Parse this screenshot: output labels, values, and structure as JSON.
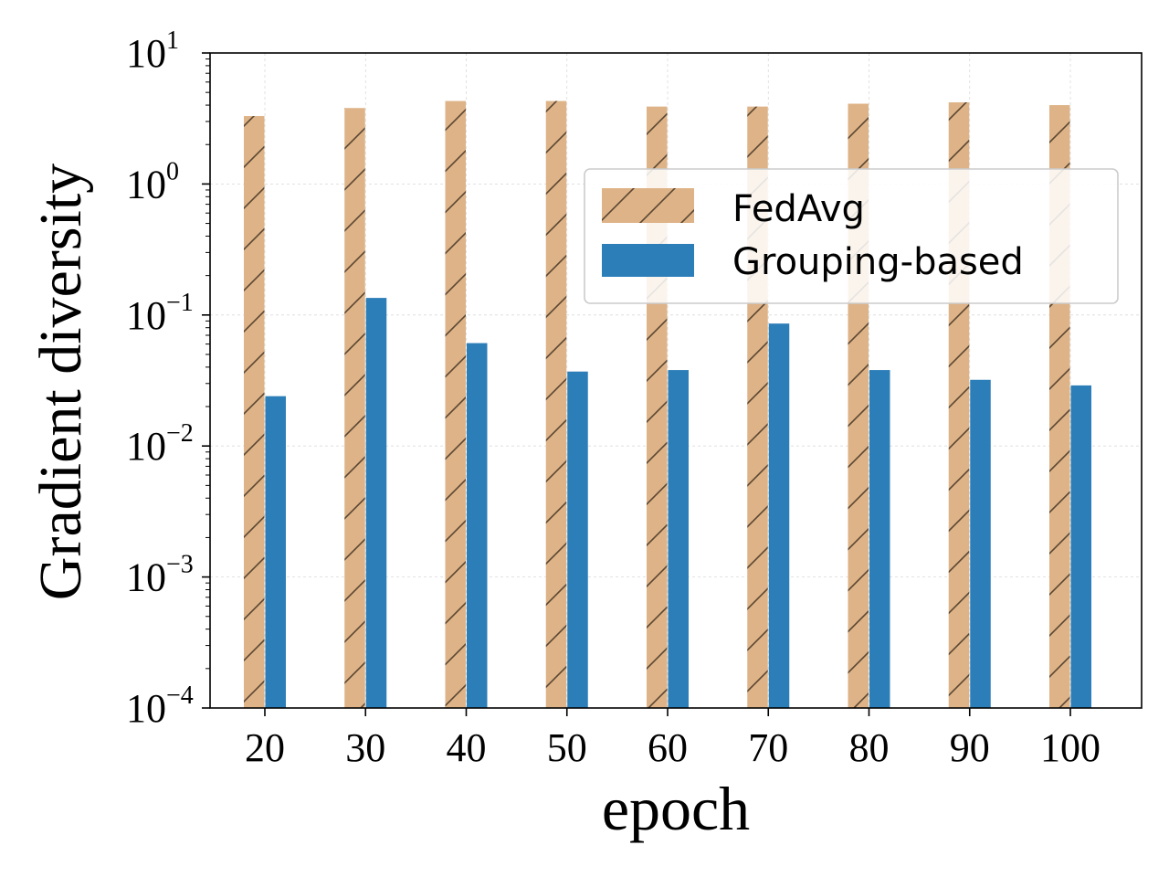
{
  "chart_data": {
    "type": "bar",
    "scale": "log",
    "xlabel": "epoch",
    "ylabel": "Gradient diversity",
    "categories": [
      "20",
      "30",
      "40",
      "50",
      "60",
      "70",
      "80",
      "90",
      "100"
    ],
    "series": [
      {
        "name": "FedAvg",
        "color": "#deb387",
        "hatch": "/",
        "values": [
          3.3,
          3.8,
          4.3,
          4.3,
          3.9,
          3.9,
          4.1,
          4.2,
          4.0
        ]
      },
      {
        "name": "Grouping-based",
        "color": "#2c7eb8",
        "values": [
          0.024,
          0.135,
          0.061,
          0.037,
          0.038,
          0.086,
          0.038,
          0.032,
          0.029
        ]
      }
    ],
    "ylim": [
      0.0001,
      10
    ],
    "yticks": [
      {
        "base": "10",
        "exp": "1",
        "value": 10
      },
      {
        "base": "10",
        "exp": "0",
        "value": 1
      },
      {
        "base": "10",
        "exp": "−1",
        "value": 0.1
      },
      {
        "base": "10",
        "exp": "−2",
        "value": 0.01
      },
      {
        "base": "10",
        "exp": "−3",
        "value": 0.001
      },
      {
        "base": "10",
        "exp": "−4",
        "value": 0.0001
      }
    ],
    "grid": true,
    "legend_position": "upper-right"
  }
}
